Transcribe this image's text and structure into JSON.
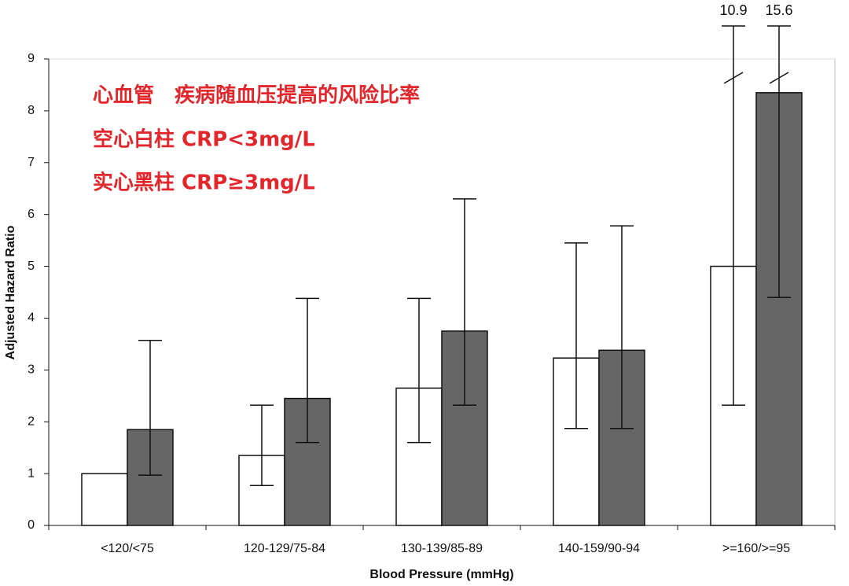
{
  "chart_data": {
    "type": "bar",
    "annotations": [
      "心血管　疾病随血压提高的风险比率",
      "空心白柱 CRP<3mg/L",
      "实心黑柱 CRP≥3mg/L"
    ],
    "x_label": "Blood Pressure (mmHg)",
    "y_label": "Adjusted Hazard Ratio",
    "categories": [
      "<120/<75",
      "120-129/75-84",
      "130-139/85-89",
      "140-159/90-94",
      ">=160/>=95"
    ],
    "series": [
      {
        "color": "#ffffff",
        "values": [
          1.0,
          1.35,
          2.65,
          3.23,
          5.0
        ],
        "lower": [
          null,
          0.77,
          1.6,
          1.87,
          2.32
        ],
        "upper": [
          null,
          2.32,
          4.38,
          5.45,
          10.9
        ]
      },
      {
        "color": "#666666",
        "values": [
          1.85,
          2.45,
          3.75,
          3.38,
          8.35
        ],
        "lower": [
          0.97,
          1.6,
          2.32,
          1.87,
          4.4
        ],
        "upper": [
          3.57,
          4.38,
          6.3,
          5.78,
          15.6
        ]
      }
    ],
    "ylim": [
      0,
      9
    ],
    "yticks": [
      0,
      1,
      2,
      3,
      4,
      5,
      6,
      7,
      8,
      9
    ]
  }
}
